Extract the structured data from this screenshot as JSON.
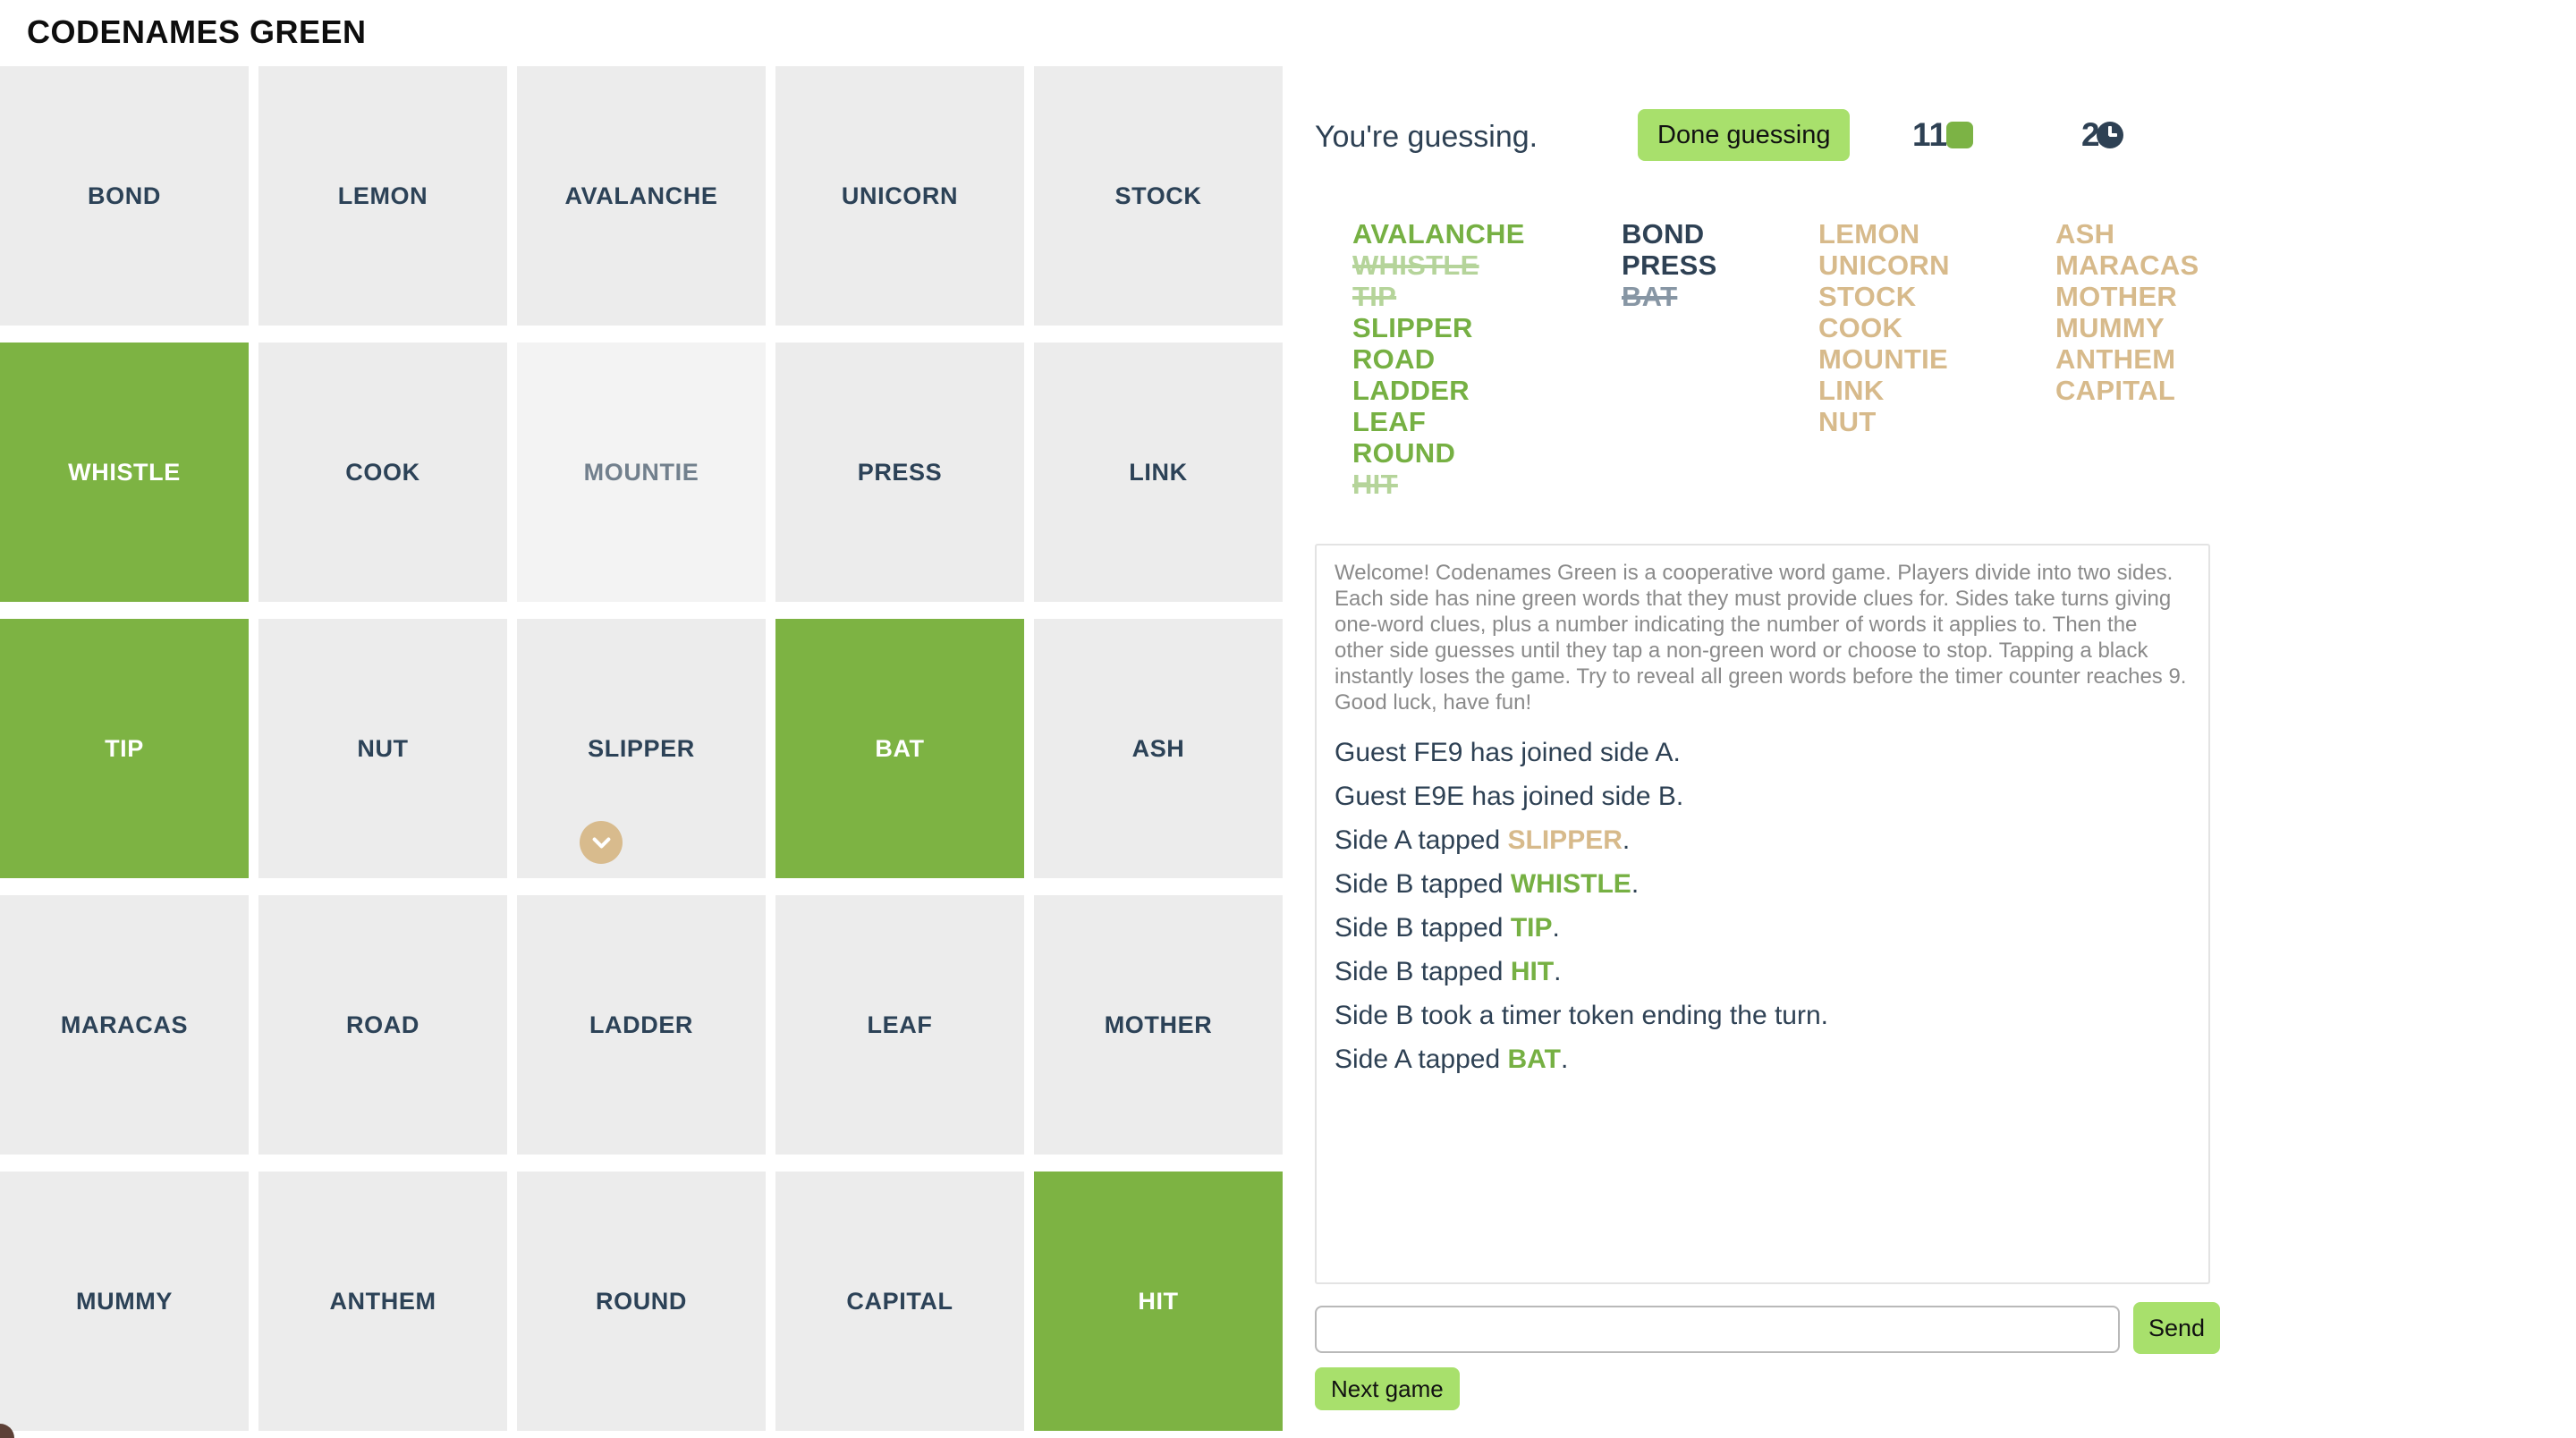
{
  "header": {
    "title": "CODENAMES GREEN"
  },
  "board": {
    "rows": 5,
    "cols": 5,
    "cards": [
      {
        "word": "BOND",
        "state": "gray"
      },
      {
        "word": "LEMON",
        "state": "gray"
      },
      {
        "word": "AVALANCHE",
        "state": "gray"
      },
      {
        "word": "UNICORN",
        "state": "gray"
      },
      {
        "word": "STOCK",
        "state": "gray"
      },
      {
        "word": "WHISTLE",
        "state": "green"
      },
      {
        "word": "COOK",
        "state": "gray"
      },
      {
        "word": "MOUNTIE",
        "state": "revealed"
      },
      {
        "word": "PRESS",
        "state": "gray"
      },
      {
        "word": "LINK",
        "state": "gray"
      },
      {
        "word": "TIP",
        "state": "green"
      },
      {
        "word": "NUT",
        "state": "gray"
      },
      {
        "word": "SLIPPER",
        "state": "gray",
        "marker": "chevron"
      },
      {
        "word": "BAT",
        "state": "green"
      },
      {
        "word": "ASH",
        "state": "gray"
      },
      {
        "word": "MARACAS",
        "state": "gray"
      },
      {
        "word": "ROAD",
        "state": "gray"
      },
      {
        "word": "LADDER",
        "state": "gray"
      },
      {
        "word": "LEAF",
        "state": "gray"
      },
      {
        "word": "MOTHER",
        "state": "gray"
      },
      {
        "word": "MUMMY",
        "state": "gray"
      },
      {
        "word": "ANTHEM",
        "state": "gray"
      },
      {
        "word": "ROUND",
        "state": "gray"
      },
      {
        "word": "CAPITAL",
        "state": "gray"
      },
      {
        "word": "HIT",
        "state": "green"
      }
    ]
  },
  "panel": {
    "status_text": "You're guessing.",
    "done_button_label": "Done guessing",
    "green_remaining": "11",
    "timer_tokens": "2",
    "icons": {
      "green_counter": "green-square-icon",
      "timer_counter": "clock-icon",
      "card_marker": "chevron-down-icon"
    },
    "word_lists": [
      {
        "id": "green",
        "color": "green",
        "words": [
          {
            "word": "AVALANCHE",
            "struck": false
          },
          {
            "word": "WHISTLE",
            "struck": true
          },
          {
            "word": "TIP",
            "struck": true
          },
          {
            "word": "SLIPPER",
            "struck": false
          },
          {
            "word": "ROAD",
            "struck": false
          },
          {
            "word": "LADDER",
            "struck": false
          },
          {
            "word": "LEAF",
            "struck": false
          },
          {
            "word": "ROUND",
            "struck": false
          },
          {
            "word": "HIT",
            "struck": true
          }
        ]
      },
      {
        "id": "black",
        "color": "black",
        "words": [
          {
            "word": "BOND",
            "struck": false
          },
          {
            "word": "PRESS",
            "struck": false
          },
          {
            "word": "BAT",
            "struck": true
          }
        ]
      },
      {
        "id": "neutral-1",
        "color": "tan",
        "words": [
          {
            "word": "LEMON",
            "struck": false
          },
          {
            "word": "UNICORN",
            "struck": false
          },
          {
            "word": "STOCK",
            "struck": false
          },
          {
            "word": "COOK",
            "struck": false
          },
          {
            "word": "MOUNTIE",
            "struck": false
          },
          {
            "word": "LINK",
            "struck": false
          },
          {
            "word": "NUT",
            "struck": false
          }
        ]
      },
      {
        "id": "neutral-2",
        "color": "tan",
        "words": [
          {
            "word": "ASH",
            "struck": false
          },
          {
            "word": "MARACAS",
            "struck": false
          },
          {
            "word": "MOTHER",
            "struck": false
          },
          {
            "word": "MUMMY",
            "struck": false
          },
          {
            "word": "ANTHEM",
            "struck": false
          },
          {
            "word": "CAPITAL",
            "struck": false
          }
        ]
      }
    ],
    "log": {
      "welcome": "Welcome! Codenames Green is a cooperative word game. Players divide into two sides. Each side has nine green words that they must provide clues for. Sides take turns giving one-word clues, plus a number indicating the number of words it applies to. Then the other side guesses until they tap a non-green word or choose to stop. Tapping a black instantly loses the game. Try to reveal all green words before the timer counter reaches 9. Good luck, have fun!",
      "events": [
        [
          {
            "t": "Guest FE9 has joined side A."
          }
        ],
        [
          {
            "t": "Guest E9E has joined side B."
          }
        ],
        [
          {
            "t": "Side A tapped "
          },
          {
            "t": "SLIPPER",
            "c": "tan"
          },
          {
            "t": "."
          }
        ],
        [
          {
            "t": "Side B tapped "
          },
          {
            "t": "WHISTLE",
            "c": "green"
          },
          {
            "t": "."
          }
        ],
        [
          {
            "t": "Side B tapped "
          },
          {
            "t": "TIP",
            "c": "green"
          },
          {
            "t": "."
          }
        ],
        [
          {
            "t": "Side B tapped "
          },
          {
            "t": "HIT",
            "c": "green"
          },
          {
            "t": "."
          }
        ],
        [
          {
            "t": "Side B took a timer token ending the turn."
          }
        ],
        [
          {
            "t": "Side A tapped "
          },
          {
            "t": "BAT",
            "c": "green"
          },
          {
            "t": "."
          }
        ]
      ]
    },
    "chat": {
      "value": "",
      "send_label": "Send"
    },
    "next_game_label": "Next game"
  },
  "colors": {
    "board_green": "#7db343",
    "button_green": "#a8e06c",
    "counter_green": "#7cb345",
    "tan": "#d7ba8b",
    "navy": "#2e4154",
    "card_gray": "#ececec",
    "marker_tan": "#d8bb8d"
  }
}
